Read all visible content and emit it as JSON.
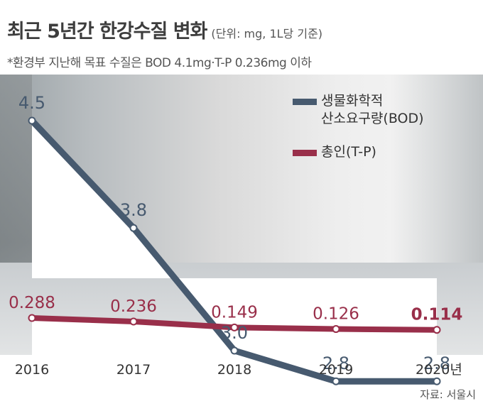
{
  "header": {
    "title": "최근 5년간 한강수질 변화",
    "unit": "(단위: mg, 1L당 기준)",
    "note": "*환경부 지난해 목표 수질은 BOD 4.1mg·T-P 0.236mg 이하"
  },
  "source": "자료: 서울시",
  "colors": {
    "bod": "#475a6f",
    "tp": "#992f4a",
    "area": "#ffffff"
  },
  "chart_data": {
    "type": "line",
    "categories": [
      "2016",
      "2017",
      "2018",
      "2019",
      "2020년"
    ],
    "series": [
      {
        "name": "생물화학적 산소요구량(BOD)",
        "legend_lines": [
          "생물화학적",
          "산소요구량(BOD)"
        ],
        "values": [
          4.5,
          3.8,
          3.0,
          2.8,
          2.8
        ],
        "labels": [
          "4.5",
          "3.8",
          "3.0",
          "2.8",
          "2.8"
        ]
      },
      {
        "name": "총인(T-P)",
        "legend_lines": [
          "총인(T-P)"
        ],
        "values": [
          0.288,
          0.236,
          0.149,
          0.126,
          0.114
        ],
        "labels": [
          "0.288",
          "0.236",
          "0.149",
          "0.126",
          "0.114"
        ]
      }
    ],
    "legend_position": "top-right",
    "grid": false
  }
}
